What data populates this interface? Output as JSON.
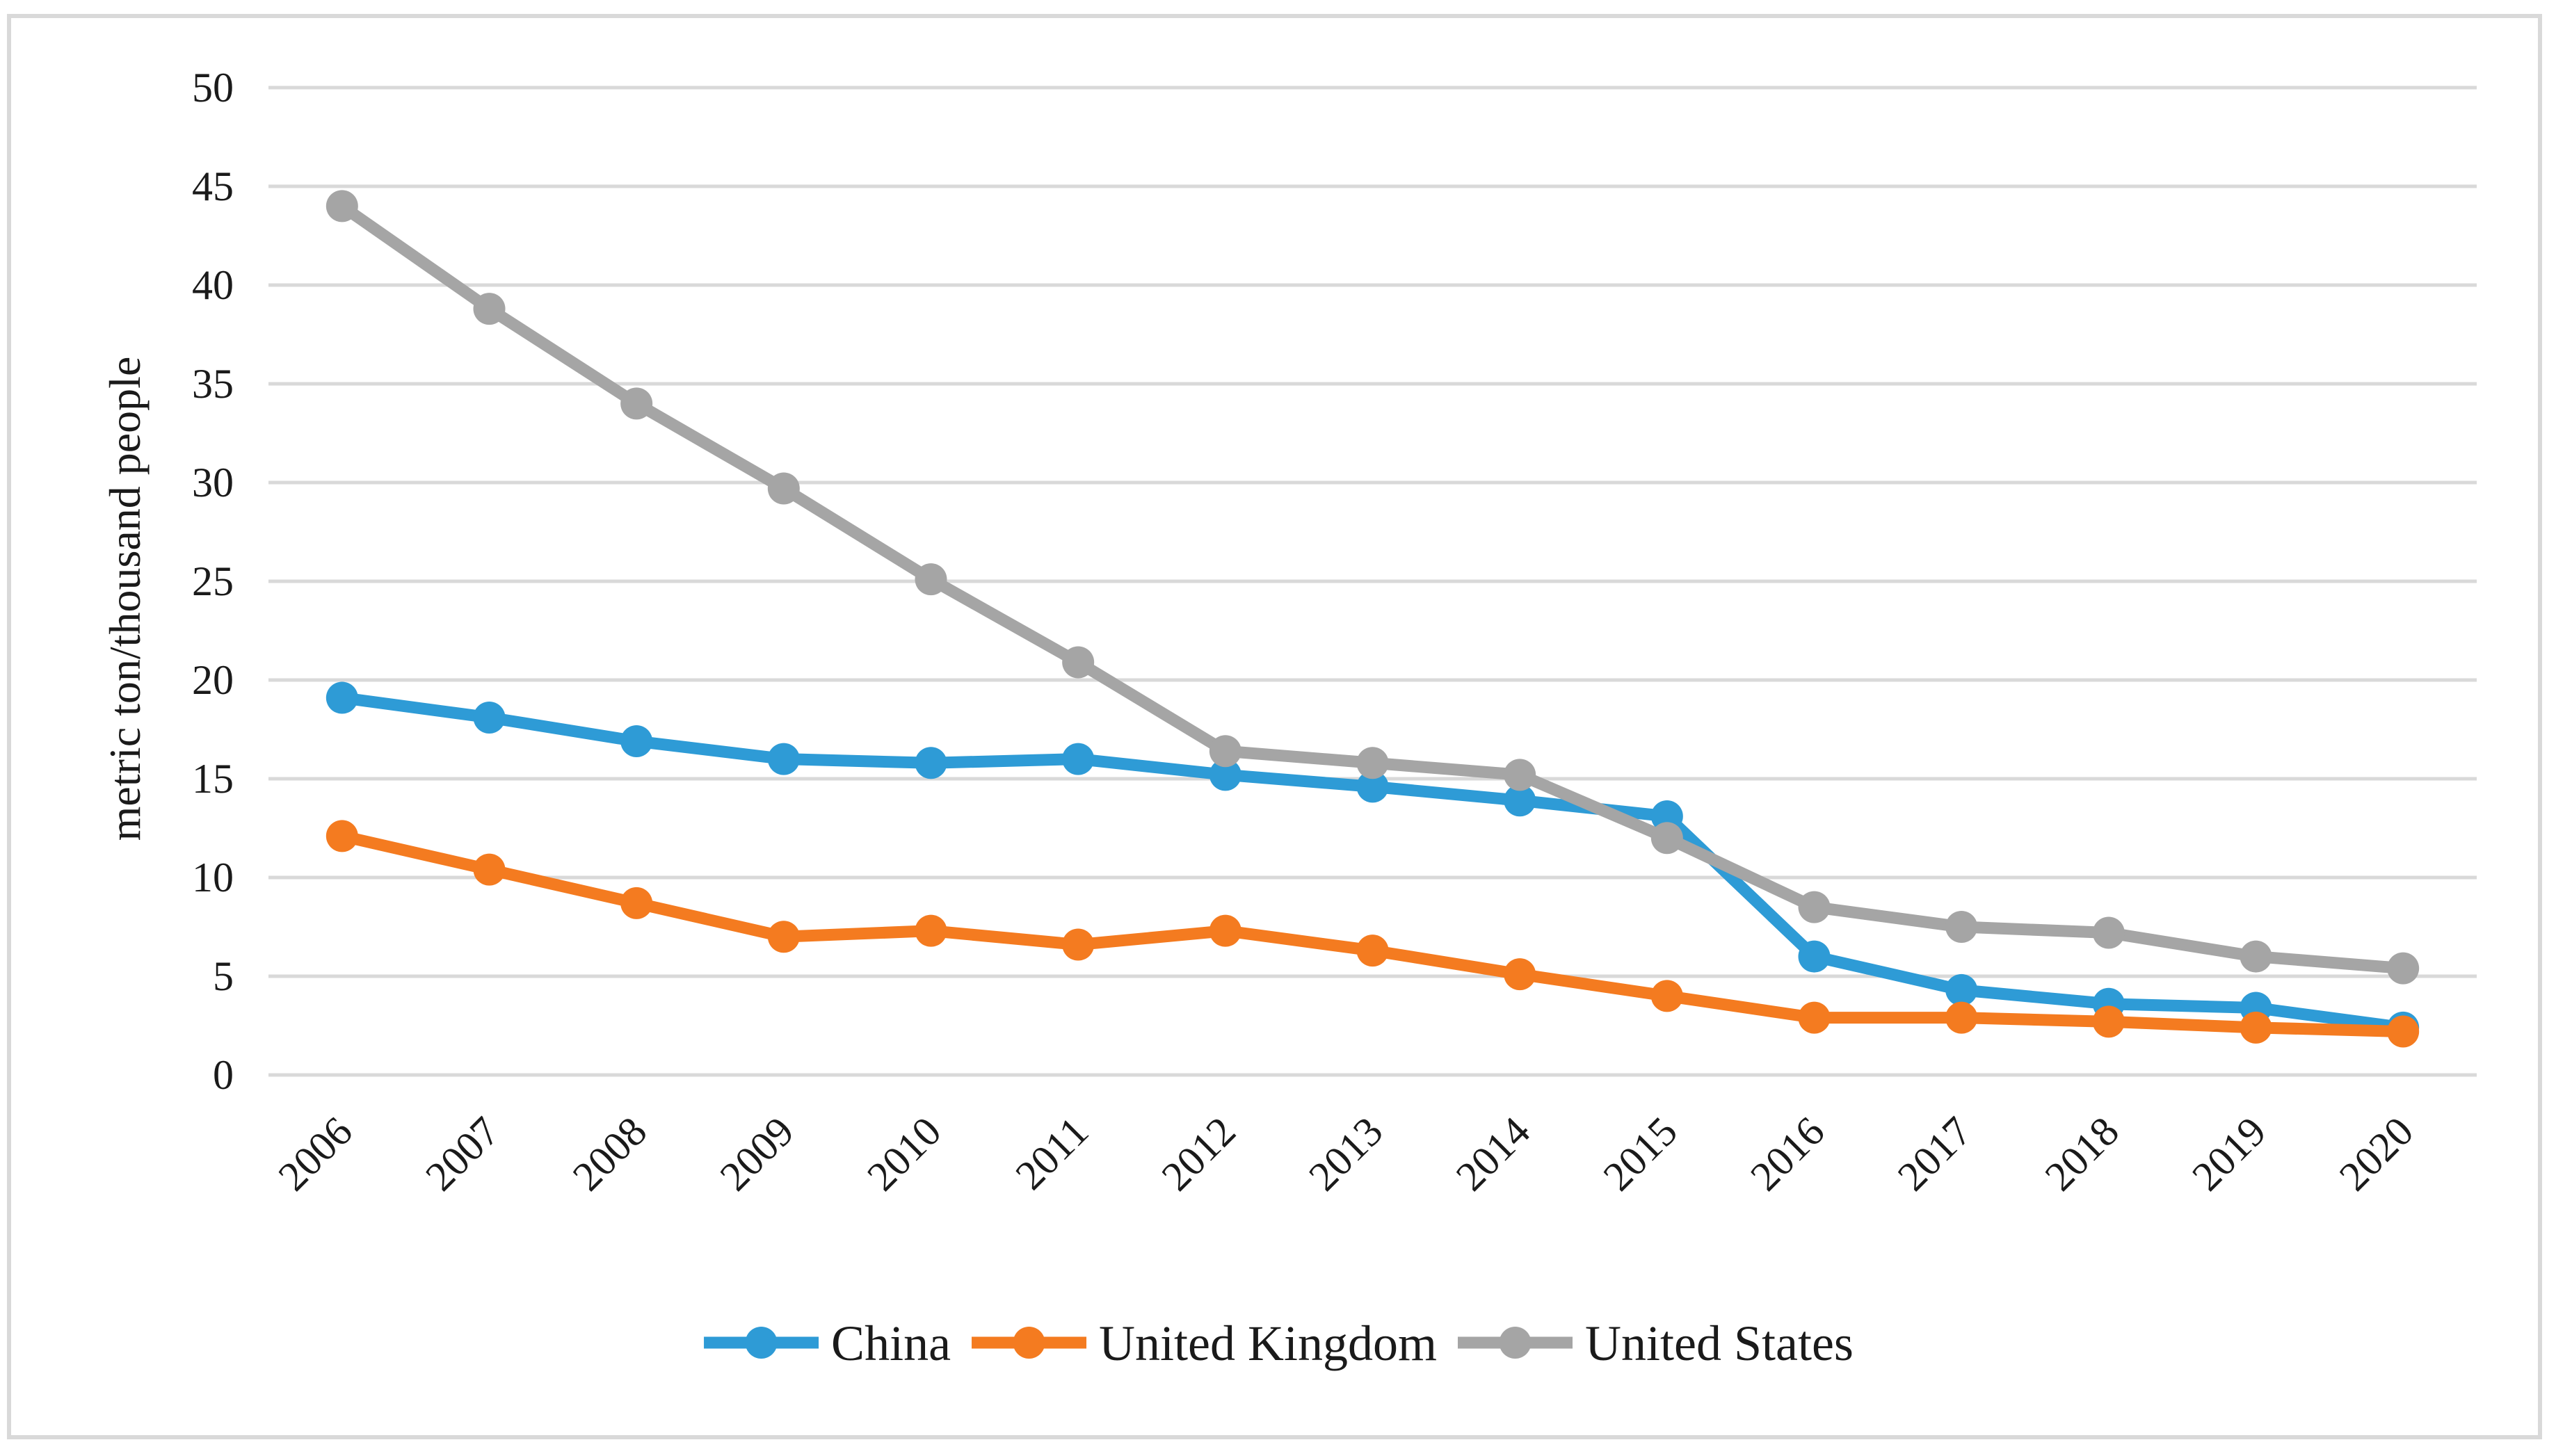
{
  "chart_data": {
    "type": "line",
    "title": "",
    "xlabel": "",
    "ylabel": "metric ton/thousand people",
    "ylim": [
      0,
      50
    ],
    "yticks": [
      0,
      5,
      10,
      15,
      20,
      25,
      30,
      35,
      40,
      45,
      50
    ],
    "grid": true,
    "legend_position": "bottom",
    "categories": [
      "2006",
      "2007",
      "2008",
      "2009",
      "2010",
      "2011",
      "2012",
      "2013",
      "2014",
      "2015",
      "2016",
      "2017",
      "2018",
      "2019",
      "2020"
    ],
    "series": [
      {
        "name": "China",
        "color": "#2e9bd6",
        "values": [
          19.1,
          18.1,
          16.9,
          16.0,
          15.8,
          16.0,
          15.2,
          14.6,
          13.9,
          13.1,
          6.0,
          4.3,
          3.6,
          3.4,
          2.4
        ]
      },
      {
        "name": "United Kingdom",
        "color": "#f47b20",
        "values": [
          12.1,
          10.4,
          8.7,
          7.0,
          7.3,
          6.6,
          7.3,
          6.3,
          5.1,
          4.0,
          2.9,
          2.9,
          2.7,
          2.4,
          2.2
        ]
      },
      {
        "name": "United States",
        "color": "#a5a5a5",
        "values": [
          44.0,
          38.8,
          34.0,
          29.7,
          25.1,
          20.9,
          16.4,
          15.8,
          15.2,
          12.0,
          8.5,
          7.5,
          7.2,
          6.0,
          5.4
        ]
      }
    ]
  }
}
